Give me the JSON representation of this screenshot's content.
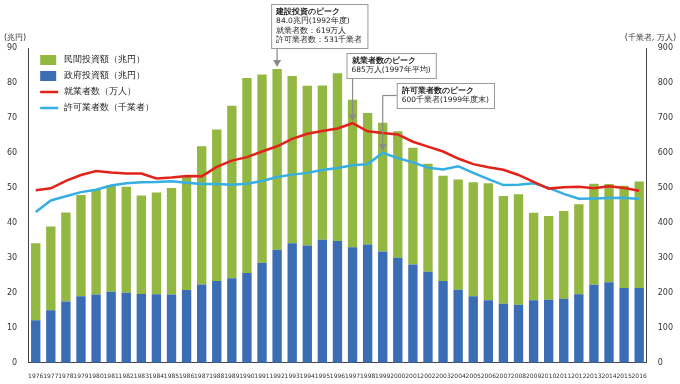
{
  "chart_data": {
    "type": "bar",
    "categories": [
      "1976",
      "1977",
      "1978",
      "1979",
      "1980",
      "1981",
      "1982",
      "1983",
      "1984",
      "1985",
      "1986",
      "1987",
      "1988",
      "1989",
      "1990",
      "1991",
      "1992",
      "1993",
      "1994",
      "1995",
      "1996",
      "1997",
      "1998",
      "1999",
      "2000",
      "2001",
      "2002",
      "2003",
      "2004",
      "2005",
      "2006",
      "2007",
      "2008",
      "2009",
      "2010",
      "2011",
      "2012",
      "2013",
      "2014",
      "2015",
      "2016"
    ],
    "series": [
      {
        "name": "民間投資額（兆円）",
        "type": "bar",
        "color": "#93b842",
        "axis": "y",
        "values": [
          22.0,
          24.0,
          25.5,
          29.0,
          30.0,
          30.5,
          30.3,
          28.1,
          29.1,
          30.5,
          32.7,
          39.5,
          43.3,
          49.3,
          55.7,
          53.8,
          51.7,
          47.8,
          45.7,
          44.1,
          48.0,
          42.2,
          37.6,
          36.8,
          36.2,
          33.4,
          30.9,
          30.1,
          31.5,
          32.6,
          33.4,
          30.8,
          31.6,
          25.0,
          24.0,
          25.1,
          25.7,
          28.9,
          28.1,
          29.2,
          30.4
        ]
      },
      {
        "name": "政府投資額（兆円）",
        "type": "bar",
        "color": "#3a6db4",
        "axis": "y",
        "values": [
          12.2,
          15.0,
          17.5,
          19.0,
          19.5,
          20.3,
          20.0,
          19.7,
          19.6,
          19.5,
          20.8,
          22.4,
          23.4,
          24.2,
          25.7,
          28.6,
          32.3,
          34.2,
          33.5,
          35.2,
          34.8,
          33.0,
          33.8,
          31.8,
          30.0,
          28.1,
          26.0,
          23.4,
          20.9,
          19.0,
          17.9,
          16.9,
          16.6,
          17.9,
          18.0,
          18.3,
          19.6,
          22.3,
          23.0,
          21.4,
          21.4
        ]
      },
      {
        "name": "就業者数（万人）",
        "type": "line",
        "color": "#e2231a",
        "axis": "y2",
        "values": [
          493,
          499,
          520,
          537,
          548,
          544,
          541,
          541,
          527,
          530,
          534,
          533,
          560,
          578,
          588,
          604,
          619,
          640,
          655,
          663,
          670,
          685,
          662,
          657,
          653,
          632,
          618,
          604,
          584,
          568,
          559,
          552,
          537,
          517,
          498,
          502,
          503,
          499,
          505,
          500,
          492
        ]
      },
      {
        "name": "許可業者数（千業者）",
        "type": "line",
        "color": "#35aee2",
        "axis": "y2",
        "values": [
          431,
          464,
          476,
          488,
          495,
          507,
          513,
          516,
          517,
          519,
          515,
          511,
          511,
          509,
          512,
          520,
          531,
          538,
          543,
          551,
          557,
          565,
          568,
          600,
          585,
          573,
          558,
          553,
          562,
          543,
          525,
          508,
          509,
          513,
          500,
          483,
          469,
          470,
          471,
          472,
          468
        ]
      }
    ],
    "ylabel": "(兆円)",
    "y2label": "(千業者, 万人)",
    "ylim": [
      0,
      90
    ],
    "yticks": [
      0,
      10,
      20,
      30,
      40,
      50,
      60,
      70,
      80,
      90
    ],
    "y2lim": [
      0,
      900
    ],
    "y2ticks": [
      0,
      100,
      200,
      300,
      400,
      500,
      600,
      700,
      800,
      900
    ],
    "stacked": true,
    "grid": false,
    "legend": "top-left",
    "annotations": [
      {
        "x": "1992",
        "series": "民間投資額（兆円）",
        "text": [
          "建設投資のピーク",
          "84.0兆円(1992年度)",
          "就業者数：619万人",
          "許可業者数：531千業者"
        ]
      },
      {
        "x": "1997",
        "series": "就業者数（万人）",
        "text": [
          "就業者数のピーク",
          "685万人(1997年平均)"
        ]
      },
      {
        "x": "1999",
        "series": "許可業者数（千業者）",
        "text": [
          "許可業者数のピーク",
          "600千業者(1999年度末)"
        ]
      }
    ]
  }
}
